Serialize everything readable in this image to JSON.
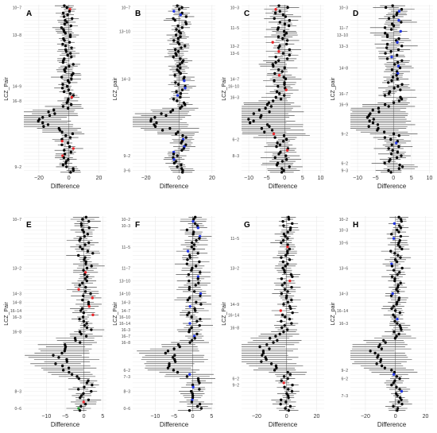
{
  "figure": {
    "panel_count": 8,
    "colors": {
      "point": "#000000",
      "highlight_red": "#e8262a",
      "highlight_blue": "#1f33e0",
      "whisker": "#333333",
      "grid": "#e6e6e6",
      "zero_line": "#777777"
    }
  },
  "chart_data": [
    {
      "panel_label": "A",
      "type": "scatter",
      "subtype": "forest",
      "xlabel": "Difference",
      "ylabel": "LCZ_Pair",
      "xlim": [
        -30,
        25
      ],
      "xticks": [
        -20,
        0,
        20
      ],
      "xtick_labels": [
        "−20",
        "0",
        "20"
      ],
      "y_labels": [
        "10−7",
        "13−8",
        "14−9",
        "16−8",
        "9−2"
      ],
      "y_label_pos": [
        1,
        16,
        44,
        52,
        88
      ],
      "n_rows": 92,
      "mean": -1.0,
      "amp": 4,
      "wide_rows": [
        [
          55,
          70,
          16,
          8
        ]
      ],
      "highlights": [
        {
          "row": 2,
          "color": "red"
        },
        {
          "row": 50,
          "color": "red"
        },
        {
          "row": 74,
          "color": "red"
        },
        {
          "row": 78,
          "color": "red"
        },
        {
          "row": 82,
          "color": "red"
        }
      ],
      "grid": true
    },
    {
      "panel_label": "B",
      "type": "scatter",
      "subtype": "forest",
      "xlabel": "Difference",
      "ylabel": "LCZ_pair",
      "xlim": [
        -28,
        22
      ],
      "xticks": [
        -20,
        0,
        20
      ],
      "xtick_labels": [
        "−20",
        "0",
        "20"
      ],
      "y_labels": [
        "10−7",
        "13−10",
        "14−3",
        "9−2",
        "3−6"
      ],
      "y_label_pos": [
        1,
        14,
        40,
        82,
        90
      ],
      "n_rows": 92,
      "mean": 0.5,
      "amp": 4,
      "wide_rows": [
        [
          56,
          70,
          15,
          8
        ]
      ],
      "highlights": [
        {
          "row": 3,
          "color": "blue"
        },
        {
          "row": 5,
          "color": "blue"
        },
        {
          "row": 41,
          "color": "blue"
        },
        {
          "row": 45,
          "color": "blue"
        },
        {
          "row": 49,
          "color": "blue"
        },
        {
          "row": 73,
          "color": "blue"
        },
        {
          "row": 77,
          "color": "blue"
        },
        {
          "row": 80,
          "color": "blue"
        },
        {
          "row": 84,
          "color": "blue"
        }
      ],
      "grid": true
    },
    {
      "panel_label": "C",
      "type": "scatter",
      "subtype": "forest",
      "xlabel": "Difference",
      "ylabel": "LCZ_Pair",
      "xlim": [
        -12,
        11
      ],
      "xticks": [
        -10,
        -5,
        0,
        5,
        10
      ],
      "xtick_labels": [
        "−10",
        "−5",
        "0",
        "5",
        "10"
      ],
      "y_labels": [
        "10−3",
        "11−5",
        "13−2",
        "13−6",
        "14−7",
        "16−10",
        "16−3",
        "6−2",
        "8−3"
      ],
      "y_label_pos": [
        1,
        12,
        22,
        26,
        40,
        44,
        50,
        73,
        82
      ],
      "n_rows": 92,
      "mean": -1.0,
      "amp": 2.5,
      "wide_rows": [
        [
          52,
          72,
          7,
          4
        ]
      ],
      "highlights": [
        {
          "row": 2,
          "color": "red"
        },
        {
          "row": 20,
          "color": "red"
        },
        {
          "row": 25,
          "color": "red"
        },
        {
          "row": 38,
          "color": "red"
        },
        {
          "row": 46,
          "color": "red"
        },
        {
          "row": 70,
          "color": "red"
        },
        {
          "row": 79,
          "color": "red"
        }
      ],
      "grid": true
    },
    {
      "panel_label": "D",
      "type": "scatter",
      "subtype": "forest",
      "xlabel": "Difference",
      "ylabel": "LCZ_pair",
      "xlim": [
        -12,
        11
      ],
      "xticks": [
        -10,
        -5,
        0,
        5,
        10
      ],
      "xtick_labels": [
        "−10",
        "−5",
        "0",
        "5",
        "10"
      ],
      "y_labels": [
        "10−3",
        "11−7",
        "13−10",
        "13−3",
        "14−8",
        "16−7",
        "16−9",
        "9−2",
        "6−2",
        "9−3"
      ],
      "y_label_pos": [
        1,
        12,
        16,
        22,
        34,
        48,
        54,
        70,
        86,
        90
      ],
      "n_rows": 92,
      "mean": 0.0,
      "amp": 2.5,
      "wide_rows": [
        [
          54,
          70,
          8,
          4
        ]
      ],
      "highlights": [
        {
          "row": 3,
          "color": "blue"
        },
        {
          "row": 8,
          "color": "blue"
        },
        {
          "row": 14,
          "color": "blue"
        },
        {
          "row": 20,
          "color": "blue"
        },
        {
          "row": 28,
          "color": "blue"
        },
        {
          "row": 33,
          "color": "blue"
        },
        {
          "row": 37,
          "color": "blue"
        },
        {
          "row": 75,
          "color": "blue"
        }
      ],
      "grid": true
    },
    {
      "panel_label": "E",
      "type": "scatter",
      "subtype": "forest",
      "xlabel": "Difference",
      "ylabel": "LCZ_Pair",
      "xlim": [
        -16,
        6
      ],
      "xticks": [
        -10,
        -5,
        0,
        5
      ],
      "xtick_labels": [
        "−10",
        "−5",
        "0",
        "5"
      ],
      "y_labels": [
        "10−7",
        "13−2",
        "14−3",
        "14−8",
        "16−14",
        "16−3",
        "16−8",
        "8−3",
        "0−6"
      ],
      "y_label_pos": [
        1,
        24,
        36,
        40,
        44,
        47,
        54,
        82,
        90
      ],
      "n_rows": 92,
      "mean": 0.5,
      "amp": 2.0,
      "wide_rows": [
        [
          56,
          76,
          7,
          3
        ]
      ],
      "highlights": [
        {
          "row": 26,
          "color": "red"
        },
        {
          "row": 34,
          "color": "red"
        },
        {
          "row": 38,
          "color": "red"
        },
        {
          "row": 42,
          "color": "red"
        },
        {
          "row": 46,
          "color": "red"
        },
        {
          "row": 87,
          "color": "red"
        },
        {
          "row": 90,
          "color": "green"
        }
      ],
      "grid": true
    },
    {
      "panel_label": "F",
      "type": "scatter",
      "subtype": "forest",
      "xlabel": "Difference",
      "ylabel": "LCZ_Pair",
      "xlim": [
        -16,
        6
      ],
      "xticks": [
        -10,
        -5,
        0,
        5
      ],
      "xtick_labels": [
        "−10",
        "−5",
        "0",
        "5"
      ],
      "y_labels": [
        "10−2",
        "10−3",
        "11−5",
        "11−7",
        "13−10",
        "14−10",
        "14−3",
        "14−7",
        "16−10",
        "16−14",
        "16−3",
        "16−7",
        "16−8",
        "6−2",
        "7−3",
        "8−3",
        "0−6"
      ],
      "y_label_pos": [
        1,
        4,
        14,
        24,
        30,
        36,
        40,
        44,
        47,
        50,
        53,
        56,
        59,
        72,
        75,
        82,
        90
      ],
      "n_rows": 92,
      "mean": 0.3,
      "amp": 2.0,
      "wide_rows": [
        [
          58,
          76,
          7,
          3
        ]
      ],
      "highlights": [
        {
          "row": 2,
          "color": "blue"
        },
        {
          "row": 5,
          "color": "blue"
        },
        {
          "row": 9,
          "color": "blue"
        },
        {
          "row": 16,
          "color": "blue"
        },
        {
          "row": 28,
          "color": "blue"
        },
        {
          "row": 36,
          "color": "blue"
        },
        {
          "row": 42,
          "color": "blue"
        },
        {
          "row": 50,
          "color": "blue"
        },
        {
          "row": 56,
          "color": "blue"
        },
        {
          "row": 74,
          "color": "blue"
        },
        {
          "row": 80,
          "color": "blue"
        },
        {
          "row": 86,
          "color": "blue"
        }
      ],
      "grid": true
    },
    {
      "panel_label": "G",
      "type": "scatter",
      "subtype": "forest",
      "xlabel": "Difference",
      "ylabel": "LCZ_Pair",
      "xlim": [
        -30,
        25
      ],
      "xticks": [
        -20,
        0,
        20
      ],
      "xtick_labels": [
        "−20",
        "0",
        "20"
      ],
      "y_labels": [
        "11−5",
        "13−2",
        "14−9",
        "16−14",
        "16−8",
        "6−2",
        "9−2"
      ],
      "y_label_pos": [
        10,
        24,
        41,
        46,
        52,
        76,
        79
      ],
      "n_rows": 92,
      "mean": 0.0,
      "amp": 4,
      "wide_rows": [
        [
          54,
          74,
          16,
          8
        ]
      ],
      "highlights": [
        {
          "row": 14,
          "color": "red"
        },
        {
          "row": 30,
          "color": "red"
        },
        {
          "row": 44,
          "color": "red"
        },
        {
          "row": 78,
          "color": "red"
        }
      ],
      "grid": true
    },
    {
      "panel_label": "H",
      "type": "scatter",
      "subtype": "forest",
      "xlabel": "Difference",
      "ylabel": "LCZ_pair",
      "xlim": [
        -30,
        25
      ],
      "xticks": [
        -20,
        0,
        20
      ],
      "xtick_labels": [
        "−20",
        "0",
        "20"
      ],
      "y_labels": [
        "10−2",
        "10−3",
        "10−6",
        "13−6",
        "14−3",
        "16−14",
        "16−3",
        "9−2",
        "6−2",
        "7−3"
      ],
      "y_label_pos": [
        1,
        6,
        12,
        24,
        36,
        44,
        50,
        72,
        76,
        84
      ],
      "n_rows": 92,
      "mean": 0.5,
      "amp": 4,
      "wide_rows": [
        [
          56,
          74,
          15,
          8
        ]
      ],
      "highlights": [
        {
          "row": 3,
          "color": "blue"
        },
        {
          "row": 10,
          "color": "blue"
        },
        {
          "row": 22,
          "color": "blue"
        },
        {
          "row": 36,
          "color": "blue"
        },
        {
          "row": 48,
          "color": "blue"
        },
        {
          "row": 74,
          "color": "blue"
        },
        {
          "row": 82,
          "color": "blue"
        }
      ],
      "grid": true
    }
  ]
}
